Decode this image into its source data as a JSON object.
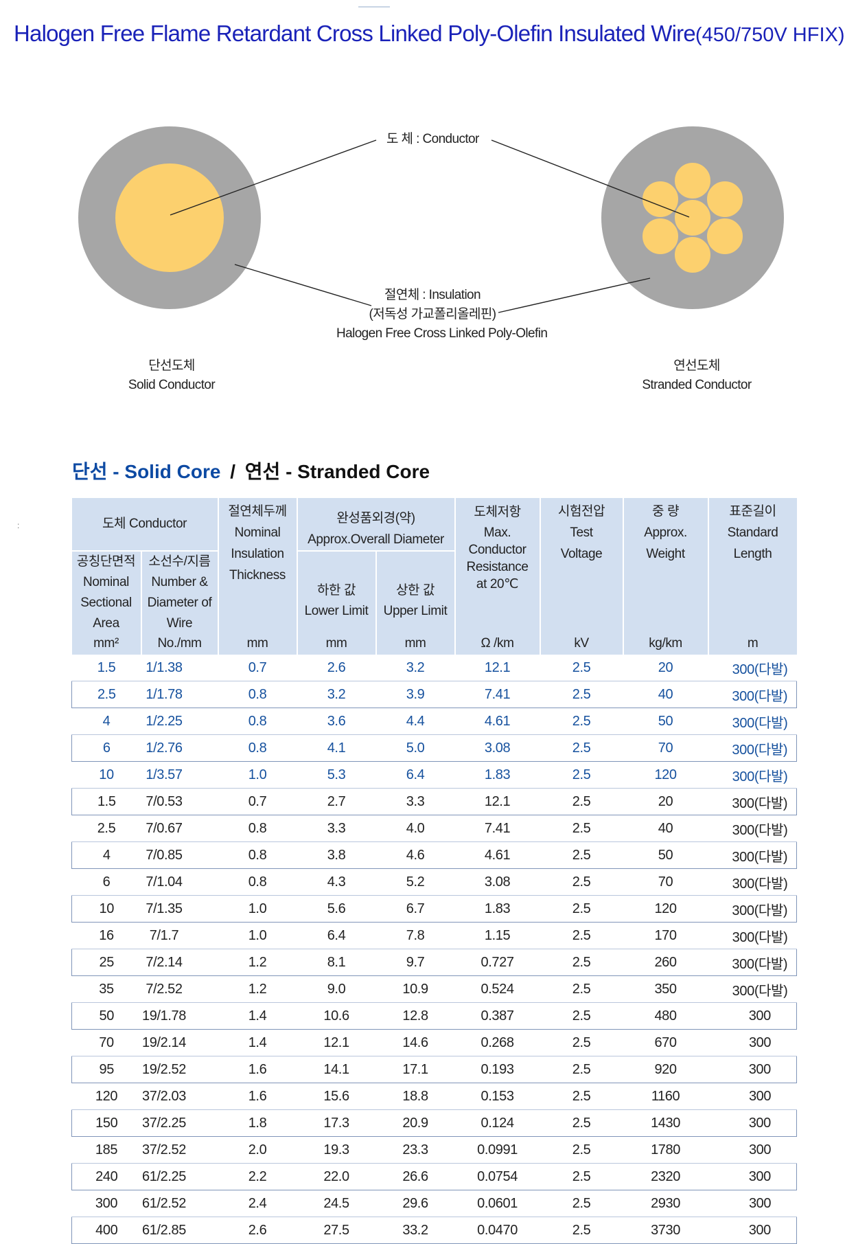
{
  "title": {
    "main": "Halogen Free Flame Retardant Cross Linked Poly-Olefin Insulated Wire",
    "suffix": "(450/750V  HFIX)"
  },
  "diagram": {
    "conductor_label": "도    체 : Conductor",
    "insulation_label_1": "절연체 : Insulation",
    "insulation_label_2": "(저독성 가교폴리올레핀)",
    "insulation_label_3": "Halogen Free Cross Linked Poly-Olefin",
    "solid_kr": "단선도체",
    "solid_en": "Solid Conductor",
    "stranded_kr": "연선도체",
    "stranded_en": "Stranded Conductor",
    "colors": {
      "insulation": "#a6a6a6",
      "conductor": "#fcd06e"
    }
  },
  "section": {
    "solid": "단선 - Solid Core",
    "separator": "/",
    "stranded": "연선 - Stranded Core"
  },
  "table": {
    "group_conductor": "도체  Conductor",
    "col1_kr": "공칭단면적",
    "col1_en": "Nominal Sectional Area",
    "col1_unit": "mm²",
    "col2_kr": "소선수/지름",
    "col2_en": "Number & Diameter of Wire",
    "col2_unit": "No./mm",
    "col3_kr": "절연체두께",
    "col3_en": "Nominal Insulation Thickness",
    "col3_unit": "mm",
    "group_diameter_kr": "완성품외경(약)",
    "group_diameter_en": "Approx.Overall  Diameter",
    "col4_kr": "하한  값",
    "col4_en": "Lower  Limit",
    "col4_unit": "mm",
    "col5_kr": "상한  값",
    "col5_en": "Upper  Limit",
    "col5_unit": "mm",
    "col6_kr": "도체저항",
    "col6_en": "Max. Conductor Resistance at 20℃",
    "col6_unit": "Ω /km",
    "col7_kr": "시험전압",
    "col7_en": "Test Voltage",
    "col7_unit": "kV",
    "col8_kr": "중    량",
    "col8_en": "Approx. Weight",
    "col8_unit": "kg/km",
    "col9_kr": "표준길이",
    "col9_en": "Standard Length",
    "col9_unit": "m",
    "rows": [
      [
        "1.5",
        "1/1.38",
        "0.7",
        "2.6",
        "3.2",
        "12.1",
        "2.5",
        "20",
        "300(다발)"
      ],
      [
        "2.5",
        "1/1.78",
        "0.8",
        "3.2",
        "3.9",
        "7.41",
        "2.5",
        "40",
        "300(다발)"
      ],
      [
        "4",
        "1/2.25",
        "0.8",
        "3.6",
        "4.4",
        "4.61",
        "2.5",
        "50",
        "300(다발)"
      ],
      [
        "6",
        "1/2.76",
        "0.8",
        "4.1",
        "5.0",
        "3.08",
        "2.5",
        "70",
        "300(다발)"
      ],
      [
        "10",
        "1/3.57",
        "1.0",
        "5.3",
        "6.4",
        "1.83",
        "2.5",
        "120",
        "300(다발)"
      ],
      [
        "1.5",
        "7/0.53",
        "0.7",
        "2.7",
        "3.3",
        "12.1",
        "2.5",
        "20",
        "300(다발)"
      ],
      [
        "2.5",
        "7/0.67",
        "0.8",
        "3.3",
        "4.0",
        "7.41",
        "2.5",
        "40",
        "300(다발)"
      ],
      [
        "4",
        "7/0.85",
        "0.8",
        "3.8",
        "4.6",
        "4.61",
        "2.5",
        "50",
        "300(다발)"
      ],
      [
        "6",
        "7/1.04",
        "0.8",
        "4.3",
        "5.2",
        "3.08",
        "2.5",
        "70",
        "300(다발)"
      ],
      [
        "10",
        "7/1.35",
        "1.0",
        "5.6",
        "6.7",
        "1.83",
        "2.5",
        "120",
        "300(다발)"
      ],
      [
        "16",
        "7/1.7",
        "1.0",
        "6.4",
        "7.8",
        "1.15",
        "2.5",
        "170",
        "300(다발)"
      ],
      [
        "25",
        "7/2.14",
        "1.2",
        "8.1",
        "9.7",
        "0.727",
        "2.5",
        "260",
        "300(다발)"
      ],
      [
        "35",
        "7/2.52",
        "1.2",
        "9.0",
        "10.9",
        "0.524",
        "2.5",
        "350",
        "300(다발)"
      ],
      [
        "50",
        "19/1.78",
        "1.4",
        "10.6",
        "12.8",
        "0.387",
        "2.5",
        "480",
        "300"
      ],
      [
        "70",
        "19/2.14",
        "1.4",
        "12.1",
        "14.6",
        "0.268",
        "2.5",
        "670",
        "300"
      ],
      [
        "95",
        "19/2.52",
        "1.6",
        "14.1",
        "17.1",
        "0.193",
        "2.5",
        "920",
        "300"
      ],
      [
        "120",
        "37/2.03",
        "1.6",
        "15.6",
        "18.8",
        "0.153",
        "2.5",
        "1160",
        "300"
      ],
      [
        "150",
        "37/2.25",
        "1.8",
        "17.3",
        "20.9",
        "0.124",
        "2.5",
        "1430",
        "300"
      ],
      [
        "185",
        "37/2.52",
        "2.0",
        "19.3",
        "23.3",
        "0.0991",
        "2.5",
        "1780",
        "300"
      ],
      [
        "240",
        "61/2.25",
        "2.2",
        "22.0",
        "26.6",
        "0.0754",
        "2.5",
        "2320",
        "300"
      ],
      [
        "300",
        "61/2.52",
        "2.4",
        "24.5",
        "29.6",
        "0.0601",
        "2.5",
        "2930",
        "300"
      ],
      [
        "400",
        "61/2.85",
        "2.6",
        "27.5",
        "33.2",
        "0.0470",
        "2.5",
        "3730",
        "300"
      ]
    ]
  }
}
